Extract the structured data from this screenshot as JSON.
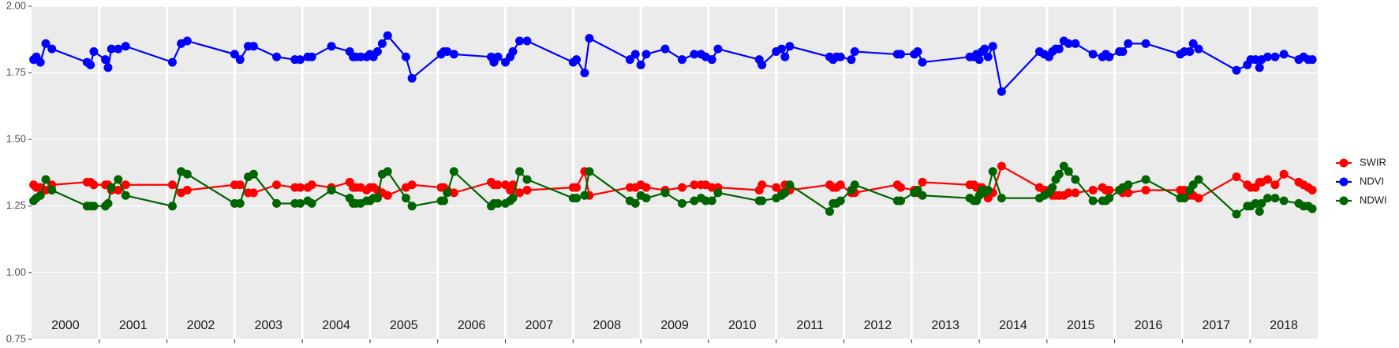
{
  "chart_data": {
    "type": "line",
    "x": [
      2000.03,
      2000.07,
      2000.13,
      2000.21,
      2000.3,
      2000.82,
      2000.87,
      2000.92,
      2001.09,
      2001.13,
      2001.18,
      2001.28,
      2001.39,
      2002.08,
      2002.21,
      2002.3,
      2003.0,
      2003.08,
      2003.2,
      2003.28,
      2003.62,
      2003.89,
      2003.97,
      2004.08,
      2004.14,
      2004.43,
      2004.7,
      2004.75,
      2004.79,
      2004.86,
      2004.95,
      2005.0,
      2005.05,
      2005.11,
      2005.18,
      2005.26,
      2005.53,
      2005.62,
      2006.05,
      2006.09,
      2006.14,
      2006.24,
      2006.79,
      2006.83,
      2006.89,
      2007.0,
      2007.07,
      2007.11,
      2007.21,
      2007.32,
      2008.0,
      2008.05,
      2008.17,
      2008.24,
      2008.84,
      2008.92,
      2009.0,
      2009.08,
      2009.36,
      2009.61,
      2009.79,
      2009.89,
      2009.96,
      2010.05,
      2010.14,
      2010.75,
      2010.79,
      2011.0,
      2011.08,
      2011.13,
      2011.2,
      2011.79,
      2011.84,
      2011.89,
      2011.95,
      2012.11,
      2012.16,
      2012.79,
      2012.84,
      2013.04,
      2013.09,
      2013.16,
      2013.86,
      2013.92,
      2013.96,
      2014.0,
      2014.04,
      2014.08,
      2014.13,
      2014.2,
      2014.33,
      2014.89,
      2014.96,
      2015.03,
      2015.08,
      2015.13,
      2015.18,
      2015.25,
      2015.32,
      2015.42,
      2015.68,
      2015.82,
      2015.87,
      2015.92,
      2016.07,
      2016.12,
      2016.2,
      2016.46,
      2016.97,
      2017.03,
      2017.11,
      2017.16,
      2017.24,
      2017.8,
      2017.96,
      2018.01,
      2018.08,
      2018.14,
      2018.17,
      2018.26,
      2018.37,
      2018.5,
      2018.72,
      2018.79,
      2018.86,
      2018.92
    ],
    "series": [
      {
        "name": "SWIR",
        "color": "#ff0000",
        "values": [
          1.33,
          1.32,
          1.32,
          1.31,
          1.33,
          1.34,
          1.34,
          1.33,
          1.33,
          1.33,
          1.31,
          1.31,
          1.33,
          1.33,
          1.3,
          1.31,
          1.33,
          1.33,
          1.3,
          1.3,
          1.33,
          1.32,
          1.32,
          1.32,
          1.33,
          1.32,
          1.34,
          1.32,
          1.32,
          1.32,
          1.31,
          1.32,
          1.32,
          1.31,
          1.3,
          1.29,
          1.32,
          1.33,
          1.32,
          1.32,
          1.31,
          1.3,
          1.34,
          1.33,
          1.33,
          1.33,
          1.31,
          1.33,
          1.3,
          1.31,
          1.32,
          1.32,
          1.38,
          1.29,
          1.32,
          1.32,
          1.33,
          1.32,
          1.31,
          1.32,
          1.33,
          1.33,
          1.33,
          1.32,
          1.32,
          1.31,
          1.33,
          1.32,
          1.3,
          1.33,
          1.31,
          1.33,
          1.32,
          1.32,
          1.33,
          1.3,
          1.3,
          1.33,
          1.32,
          1.31,
          1.3,
          1.34,
          1.33,
          1.33,
          1.32,
          1.32,
          1.32,
          1.3,
          1.28,
          1.3,
          1.4,
          1.32,
          1.31,
          1.31,
          1.29,
          1.29,
          1.29,
          1.29,
          1.3,
          1.3,
          1.31,
          1.32,
          1.31,
          1.31,
          1.31,
          1.3,
          1.3,
          1.31,
          1.31,
          1.31,
          1.29,
          1.29,
          1.28,
          1.36,
          1.33,
          1.32,
          1.32,
          1.34,
          1.34,
          1.35,
          1.33,
          1.37,
          1.34,
          1.33,
          1.32,
          1.31
        ]
      },
      {
        "name": "NDVI",
        "color": "#0000ff",
        "values": [
          1.8,
          1.81,
          1.79,
          1.86,
          1.84,
          1.79,
          1.78,
          1.83,
          1.8,
          1.77,
          1.84,
          1.84,
          1.85,
          1.79,
          1.86,
          1.87,
          1.82,
          1.8,
          1.85,
          1.85,
          1.81,
          1.8,
          1.8,
          1.81,
          1.81,
          1.85,
          1.83,
          1.81,
          1.81,
          1.81,
          1.81,
          1.82,
          1.81,
          1.83,
          1.86,
          1.89,
          1.81,
          1.73,
          1.82,
          1.83,
          1.83,
          1.82,
          1.81,
          1.79,
          1.81,
          1.79,
          1.81,
          1.83,
          1.87,
          1.87,
          1.79,
          1.8,
          1.75,
          1.88,
          1.8,
          1.82,
          1.78,
          1.82,
          1.84,
          1.8,
          1.82,
          1.82,
          1.81,
          1.8,
          1.84,
          1.8,
          1.78,
          1.83,
          1.84,
          1.81,
          1.85,
          1.81,
          1.8,
          1.81,
          1.81,
          1.8,
          1.83,
          1.82,
          1.82,
          1.82,
          1.83,
          1.79,
          1.81,
          1.81,
          1.82,
          1.8,
          1.83,
          1.84,
          1.81,
          1.85,
          1.68,
          1.83,
          1.82,
          1.81,
          1.83,
          1.84,
          1.84,
          1.87,
          1.86,
          1.86,
          1.82,
          1.81,
          1.82,
          1.81,
          1.83,
          1.83,
          1.86,
          1.86,
          1.82,
          1.83,
          1.83,
          1.86,
          1.84,
          1.76,
          1.78,
          1.8,
          1.8,
          1.77,
          1.8,
          1.81,
          1.81,
          1.82,
          1.8,
          1.81,
          1.8,
          1.8
        ]
      },
      {
        "name": "NDWI",
        "color": "#006400",
        "values": [
          1.27,
          1.28,
          1.29,
          1.35,
          1.31,
          1.25,
          1.25,
          1.25,
          1.25,
          1.26,
          1.32,
          1.35,
          1.29,
          1.25,
          1.38,
          1.37,
          1.26,
          1.26,
          1.36,
          1.37,
          1.26,
          1.26,
          1.26,
          1.27,
          1.26,
          1.31,
          1.28,
          1.26,
          1.26,
          1.26,
          1.27,
          1.27,
          1.28,
          1.28,
          1.37,
          1.38,
          1.28,
          1.25,
          1.27,
          1.27,
          1.3,
          1.38,
          1.25,
          1.26,
          1.26,
          1.26,
          1.27,
          1.28,
          1.38,
          1.35,
          1.28,
          1.28,
          1.29,
          1.38,
          1.27,
          1.26,
          1.29,
          1.28,
          1.3,
          1.26,
          1.27,
          1.28,
          1.27,
          1.27,
          1.3,
          1.27,
          1.27,
          1.28,
          1.29,
          1.3,
          1.33,
          1.23,
          1.26,
          1.26,
          1.27,
          1.31,
          1.33,
          1.27,
          1.27,
          1.3,
          1.31,
          1.29,
          1.28,
          1.27,
          1.27,
          1.29,
          1.31,
          1.3,
          1.31,
          1.38,
          1.28,
          1.28,
          1.29,
          1.3,
          1.32,
          1.35,
          1.37,
          1.4,
          1.38,
          1.35,
          1.27,
          1.27,
          1.27,
          1.28,
          1.31,
          1.32,
          1.33,
          1.35,
          1.28,
          1.28,
          1.31,
          1.33,
          1.35,
          1.22,
          1.25,
          1.25,
          1.26,
          1.23,
          1.26,
          1.28,
          1.28,
          1.27,
          1.26,
          1.25,
          1.25,
          1.24
        ]
      }
    ],
    "xlim": [
      2000,
      2019
    ],
    "xticks": [
      {
        "value": 2000.5,
        "label": "2000"
      },
      {
        "value": 2001.5,
        "label": "2001"
      },
      {
        "value": 2002.5,
        "label": "2002"
      },
      {
        "value": 2003.5,
        "label": "2003"
      },
      {
        "value": 2004.5,
        "label": "2004"
      },
      {
        "value": 2005.5,
        "label": "2005"
      },
      {
        "value": 2006.5,
        "label": "2006"
      },
      {
        "value": 2007.5,
        "label": "2007"
      },
      {
        "value": 2008.5,
        "label": "2008"
      },
      {
        "value": 2009.5,
        "label": "2009"
      },
      {
        "value": 2010.5,
        "label": "2010"
      },
      {
        "value": 2011.5,
        "label": "2011"
      },
      {
        "value": 2012.5,
        "label": "2012"
      },
      {
        "value": 2013.5,
        "label": "2013"
      },
      {
        "value": 2014.5,
        "label": "2014"
      },
      {
        "value": 2015.5,
        "label": "2015"
      },
      {
        "value": 2016.5,
        "label": "2016"
      },
      {
        "value": 2017.5,
        "label": "2017"
      },
      {
        "value": 2018.5,
        "label": "2018"
      }
    ],
    "year_boundaries": [
      2001,
      2002,
      2003,
      2004,
      2005,
      2006,
      2007,
      2008,
      2009,
      2010,
      2011,
      2012,
      2013,
      2014,
      2015,
      2016,
      2017,
      2018
    ],
    "ylim": [
      0.75,
      2.0
    ],
    "yticks": [
      0.75,
      {
        "value": 1,
        "label": "1.00"
      },
      1.25,
      {
        "value": 1.5,
        "label": "1.50"
      },
      1.75,
      {
        "value": 2,
        "label": "2.00"
      }
    ],
    "grid": true,
    "legend": "right"
  }
}
